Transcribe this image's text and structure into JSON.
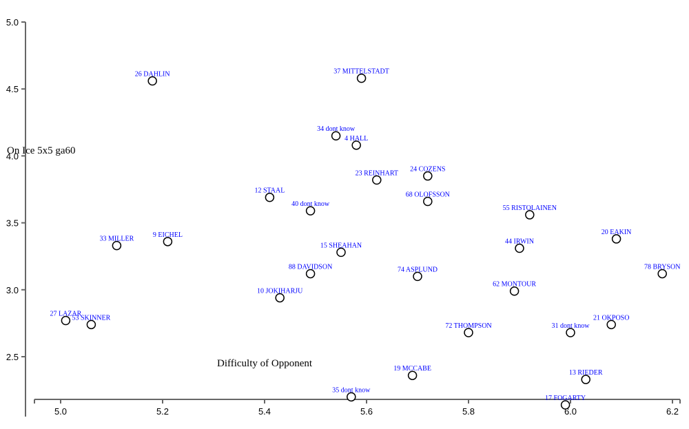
{
  "chart_data": {
    "type": "scatter",
    "xlabel": "Difficulty of Opponent",
    "ylabel": "On Ice 5x5 ga60",
    "xlim": [
      4.95,
      6.22
    ],
    "ylim": [
      2.18,
      5.0
    ],
    "x_ticks": [
      "5.0",
      "5.2",
      "5.4",
      "5.6",
      "5.8",
      "6.0",
      "6.2"
    ],
    "y_ticks": [
      "2.5",
      "3.0",
      "3.5",
      "4.0",
      "4.5",
      "5.0"
    ],
    "grid": false,
    "label_color": "#0000ff",
    "points": [
      {
        "label": "26 DAHLIN",
        "x": 5.18,
        "y": 4.56
      },
      {
        "label": "37 MITTELSTADT",
        "x": 5.59,
        "y": 4.58
      },
      {
        "label": "34 dont know",
        "x": 5.54,
        "y": 4.15
      },
      {
        "label": "4 HALL",
        "x": 5.58,
        "y": 4.08
      },
      {
        "label": "24 COZENS",
        "x": 5.72,
        "y": 3.85
      },
      {
        "label": "23 REINHART",
        "x": 5.62,
        "y": 3.82
      },
      {
        "label": "12 STAAL",
        "x": 5.41,
        "y": 3.69
      },
      {
        "label": "68 OLOFSSON",
        "x": 5.72,
        "y": 3.66
      },
      {
        "label": "40 dont know",
        "x": 5.49,
        "y": 3.59
      },
      {
        "label": "55 RISTOLAINEN",
        "x": 5.92,
        "y": 3.56
      },
      {
        "label": "20 EAKIN",
        "x": 6.09,
        "y": 3.38
      },
      {
        "label": "9 EICHEL",
        "x": 5.21,
        "y": 3.36
      },
      {
        "label": "33 MILLER",
        "x": 5.11,
        "y": 3.33
      },
      {
        "label": "44 IRWIN",
        "x": 5.9,
        "y": 3.31
      },
      {
        "label": "15 SHEAHAN",
        "x": 5.55,
        "y": 3.28
      },
      {
        "label": "78 BRYSON",
        "x": 6.18,
        "y": 3.12
      },
      {
        "label": "88 DAVIDSON",
        "x": 5.49,
        "y": 3.12
      },
      {
        "label": "74 ASPLUND",
        "x": 5.7,
        "y": 3.1
      },
      {
        "label": "62 MONTOUR",
        "x": 5.89,
        "y": 2.99
      },
      {
        "label": "10 JOKIHARJU",
        "x": 5.43,
        "y": 2.94
      },
      {
        "label": "27 LAZAR",
        "x": 5.01,
        "y": 2.77
      },
      {
        "label": "53 SKINNER",
        "x": 5.06,
        "y": 2.74
      },
      {
        "label": "21 OKPOSO",
        "x": 6.08,
        "y": 2.74
      },
      {
        "label": "72 THOMPSON",
        "x": 5.8,
        "y": 2.68
      },
      {
        "label": "31 dont know",
        "x": 6.0,
        "y": 2.68
      },
      {
        "label": "19 MCCABE",
        "x": 5.69,
        "y": 2.36
      },
      {
        "label": "13 RIEDER",
        "x": 6.03,
        "y": 2.33
      },
      {
        "label": "35 dont know",
        "x": 5.57,
        "y": 2.2
      },
      {
        "label": "17 FOGARTY",
        "x": 5.99,
        "y": 2.14
      }
    ]
  }
}
